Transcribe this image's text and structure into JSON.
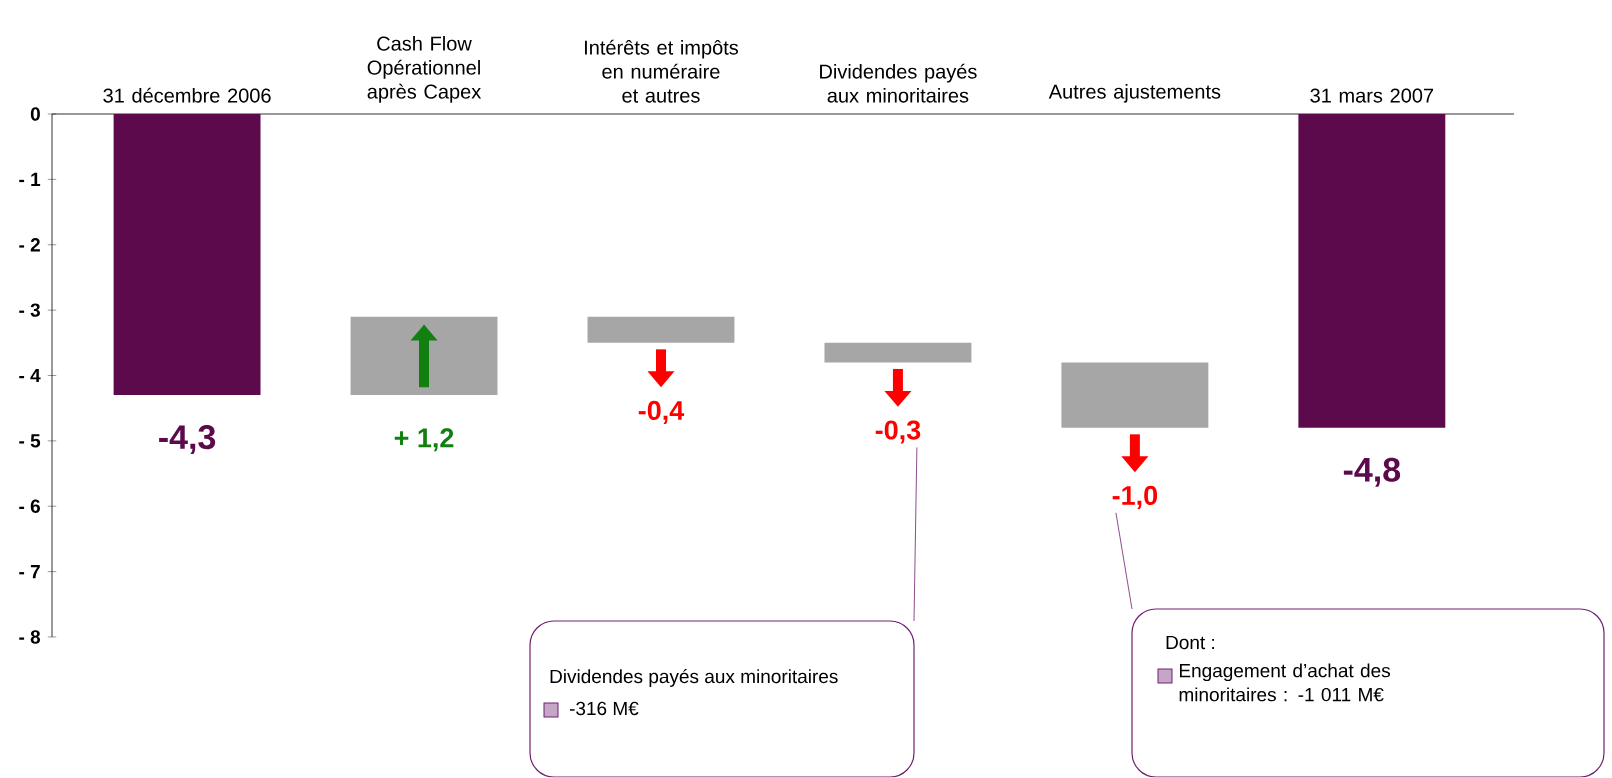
{
  "chart_data": {
    "type": "bar",
    "categories": [
      "31 décembre 2006",
      "Cash Flow Opérationnel après Capex",
      "Intérêts et impôts en numéraire et autres",
      "Dividendes payés aux minoritaires",
      "Autres ajustements",
      "31 mars 2007"
    ],
    "values": [
      -4.3,
      1.2,
      -0.4,
      -0.3,
      -1.0,
      -4.8
    ],
    "base": [
      0,
      -4.3,
      -3.1,
      -3.5,
      -3.8,
      0
    ],
    "value_labels": [
      "-4,3",
      "+ 1,2",
      "-0,4",
      "-0,3",
      "-1,0",
      "-4,8"
    ],
    "colors": [
      "#5c0a4c",
      "#a6a6a6",
      "#a6a6a6",
      "#a6a6a6",
      "#a6a6a6",
      "#5c0a4c"
    ],
    "ylim": [
      -8,
      0
    ],
    "yticks": [
      0,
      {
        "value": -1,
        "label": "- 1"
      },
      {
        "value": -2,
        "label": "- 2"
      },
      {
        "value": -3,
        "label": "- 3"
      },
      {
        "value": -4,
        "label": "- 4"
      },
      {
        "value": -5,
        "label": "- 5"
      },
      {
        "value": -6,
        "label": "- 6"
      },
      {
        "value": -7,
        "label": "- 7"
      },
      {
        "value": -8,
        "label": "- 8"
      }
    ],
    "annotations": [
      "Dividendes payés aux minoritaires",
      "-316 M€",
      "Dont :",
      "Engagement d’achat des minoritaires : -1 011 M€"
    ]
  }
}
